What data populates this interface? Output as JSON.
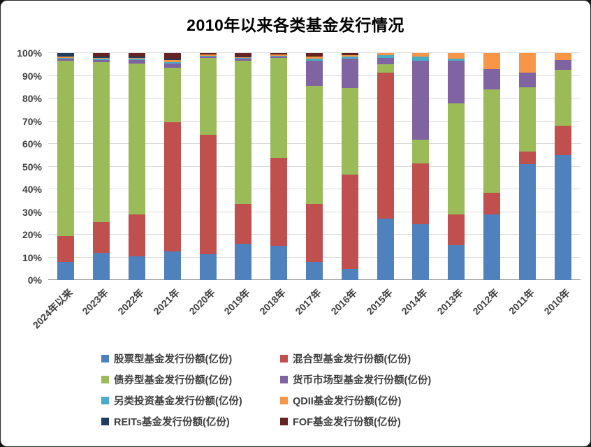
{
  "window": {
    "title": "2010年以来各类基金发行情况"
  },
  "chart_data": {
    "type": "bar",
    "stacked": true,
    "percent": true,
    "title": "2010年以来各类基金发行情况",
    "grid": true,
    "legend_position": "bottom",
    "ylim": [
      0,
      100
    ],
    "y_ticks": [
      "0%",
      "10%",
      "20%",
      "30%",
      "40%",
      "50%",
      "60%",
      "70%",
      "80%",
      "90%",
      "100%"
    ],
    "categories": [
      "2024年以来",
      "2023年",
      "2022年",
      "2021年",
      "2020年",
      "2019年",
      "2018年",
      "2017年",
      "2016年",
      "2015年",
      "2014年",
      "2013年",
      "2012年",
      "2011年",
      "2010年"
    ],
    "series": [
      {
        "name": "股票型基金发行份额(亿份)",
        "color": "#4F81BD",
        "values": [
          8,
          12,
          10.5,
          12.5,
          11.5,
          16,
          15,
          8,
          5,
          27,
          24.5,
          15.5,
          29,
          51,
          55
        ]
      },
      {
        "name": "混合型基金发行份额(亿份)",
        "color": "#C0504D",
        "values": [
          11.5,
          13.5,
          18.5,
          57,
          52.5,
          17.5,
          39,
          25.5,
          41.5,
          64.5,
          27,
          13.5,
          9.5,
          5.5,
          13
        ]
      },
      {
        "name": "债券型基金发行份额(亿份)",
        "color": "#9BBB59",
        "values": [
          77,
          70.5,
          66.5,
          24,
          34,
          63,
          44,
          52,
          38,
          3.5,
          10.5,
          49,
          45.5,
          28.5,
          24.5
        ]
      },
      {
        "name": "货币市场型基金发行份额(亿份)",
        "color": "#8064A2",
        "values": [
          1,
          1,
          1.5,
          2,
          0.5,
          1,
          0.5,
          11,
          13,
          3,
          34.5,
          18.5,
          9,
          6.5,
          4.5
        ]
      },
      {
        "name": "另类投资基金发行份额(亿份)",
        "color": "#4BACC6",
        "values": [
          0.5,
          0.5,
          0.5,
          0.5,
          0.3,
          0.3,
          0.3,
          1,
          1,
          1,
          2,
          1,
          0,
          0,
          0
        ]
      },
      {
        "name": "QDII基金发行份额(亿份)",
        "color": "#F79646",
        "values": [
          0.5,
          0.5,
          0.5,
          1,
          0.5,
          0.5,
          0.5,
          1,
          0.5,
          1,
          1.5,
          2.5,
          7,
          8.5,
          3
        ]
      },
      {
        "name": "REITs基金发行份额(亿份)",
        "color": "#1F3B60",
        "values": [
          1.5,
          0.5,
          0.5,
          0.5,
          0.2,
          0.2,
          0,
          0,
          0,
          0,
          0,
          0,
          0,
          0,
          0
        ]
      },
      {
        "name": "FOF基金发行份额(亿份)",
        "color": "#632423",
        "values": [
          0,
          1.5,
          1.5,
          2.5,
          0.5,
          1.5,
          0.7,
          1.5,
          1,
          0,
          0,
          0,
          0,
          0,
          0
        ]
      }
    ]
  }
}
